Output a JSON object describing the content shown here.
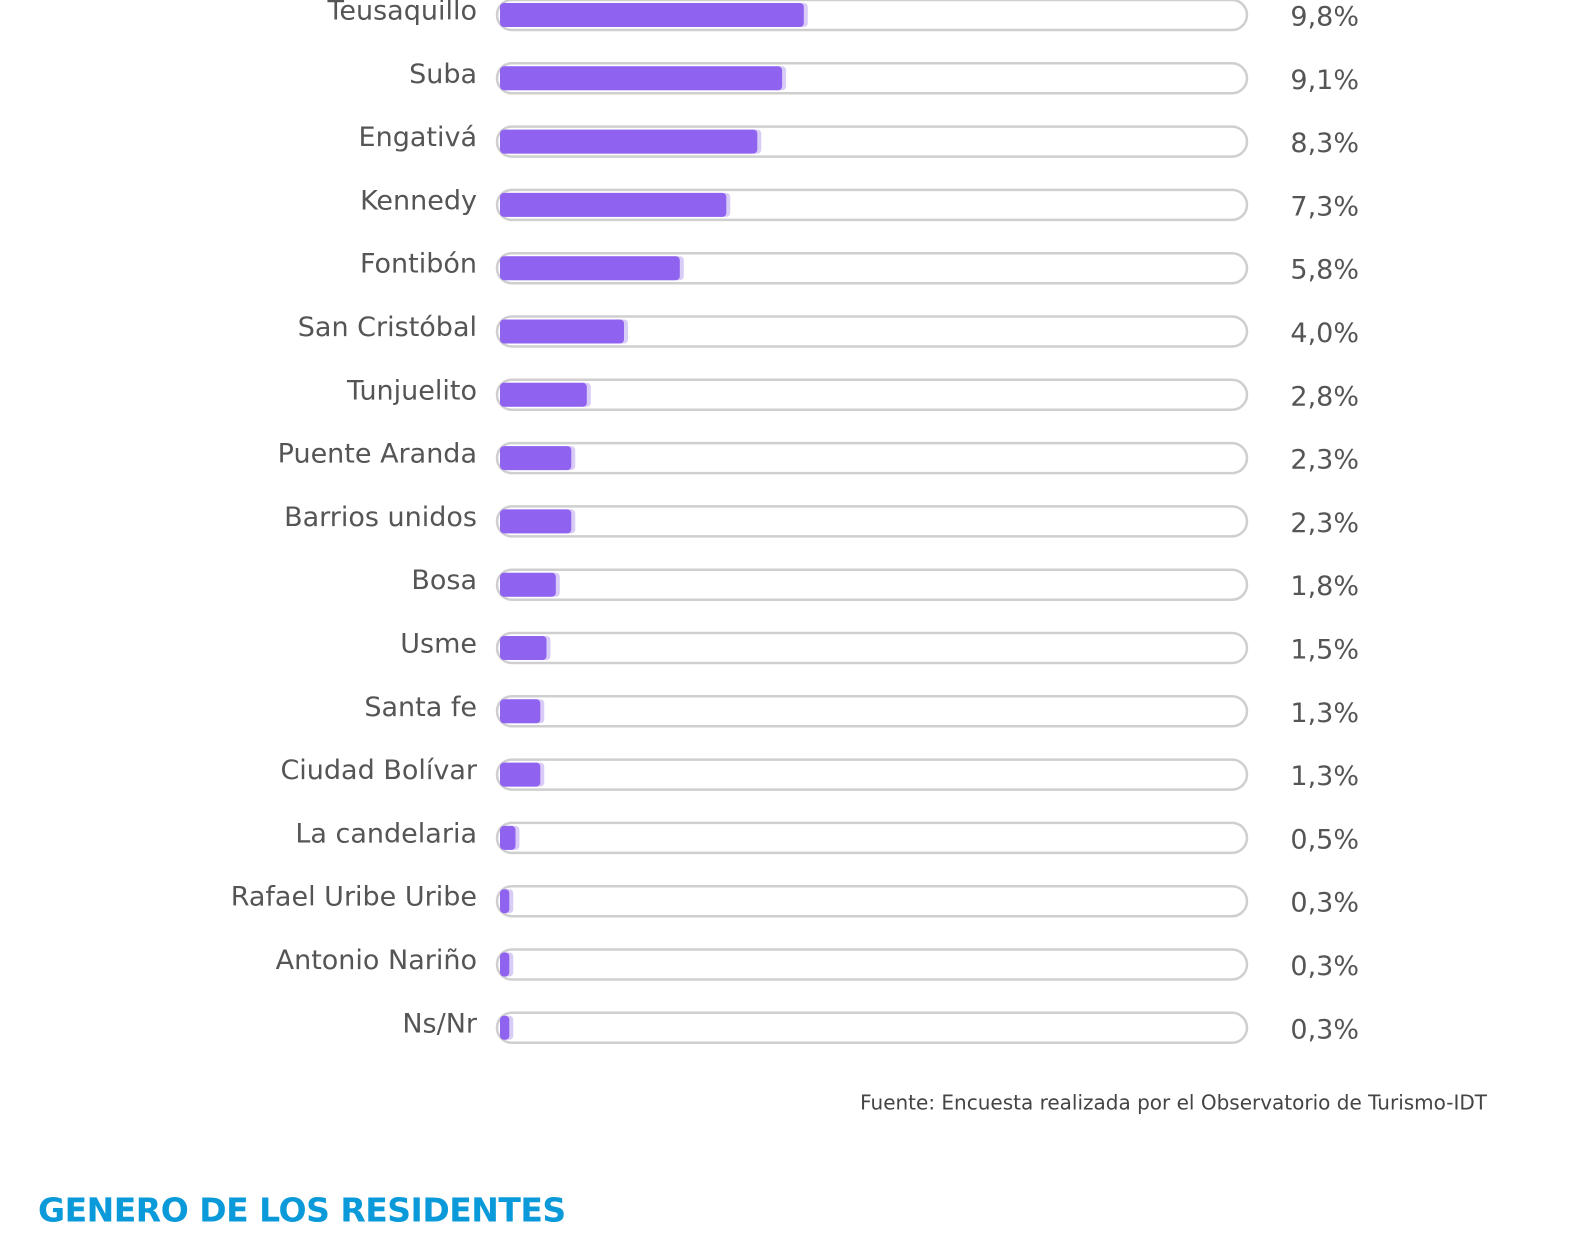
{
  "chart_data": {
    "type": "bar",
    "orientation": "horizontal",
    "categories": [
      "Teusaquillo",
      "Suba",
      "Engativá",
      "Kennedy",
      "Fontibón",
      "San Cristóbal",
      "Tunjuelito",
      "Puente Aranda",
      "Barrios unidos",
      "Bosa",
      "Usme",
      "Santa fe",
      "Ciudad Bolívar",
      "La candelaria",
      "Rafael Uribe Uribe",
      "Antonio Nariño",
      "Ns/Nr"
    ],
    "values": [
      9.8,
      9.1,
      8.3,
      7.3,
      5.8,
      4.0,
      2.8,
      2.3,
      2.3,
      1.8,
      1.5,
      1.3,
      1.3,
      0.5,
      0.3,
      0.3,
      0.3
    ],
    "value_labels": [
      "9,8%",
      "9,1%",
      "8,3%",
      "7,3%",
      "5,8%",
      "4,0%",
      "2,8%",
      "2,3%",
      "2,3%",
      "1,8%",
      "1,5%",
      "1,3%",
      "1,3%",
      "0,5%",
      "0,3%",
      "0,3%",
      "0,3%"
    ],
    "color": "#9062f0",
    "xlim": [
      0,
      24
    ],
    "source": "Fuente: Encuesta realizada por el Observatorio de Turismo-IDT"
  },
  "section_heading": "GENERO DE LOS RESIDENTES"
}
